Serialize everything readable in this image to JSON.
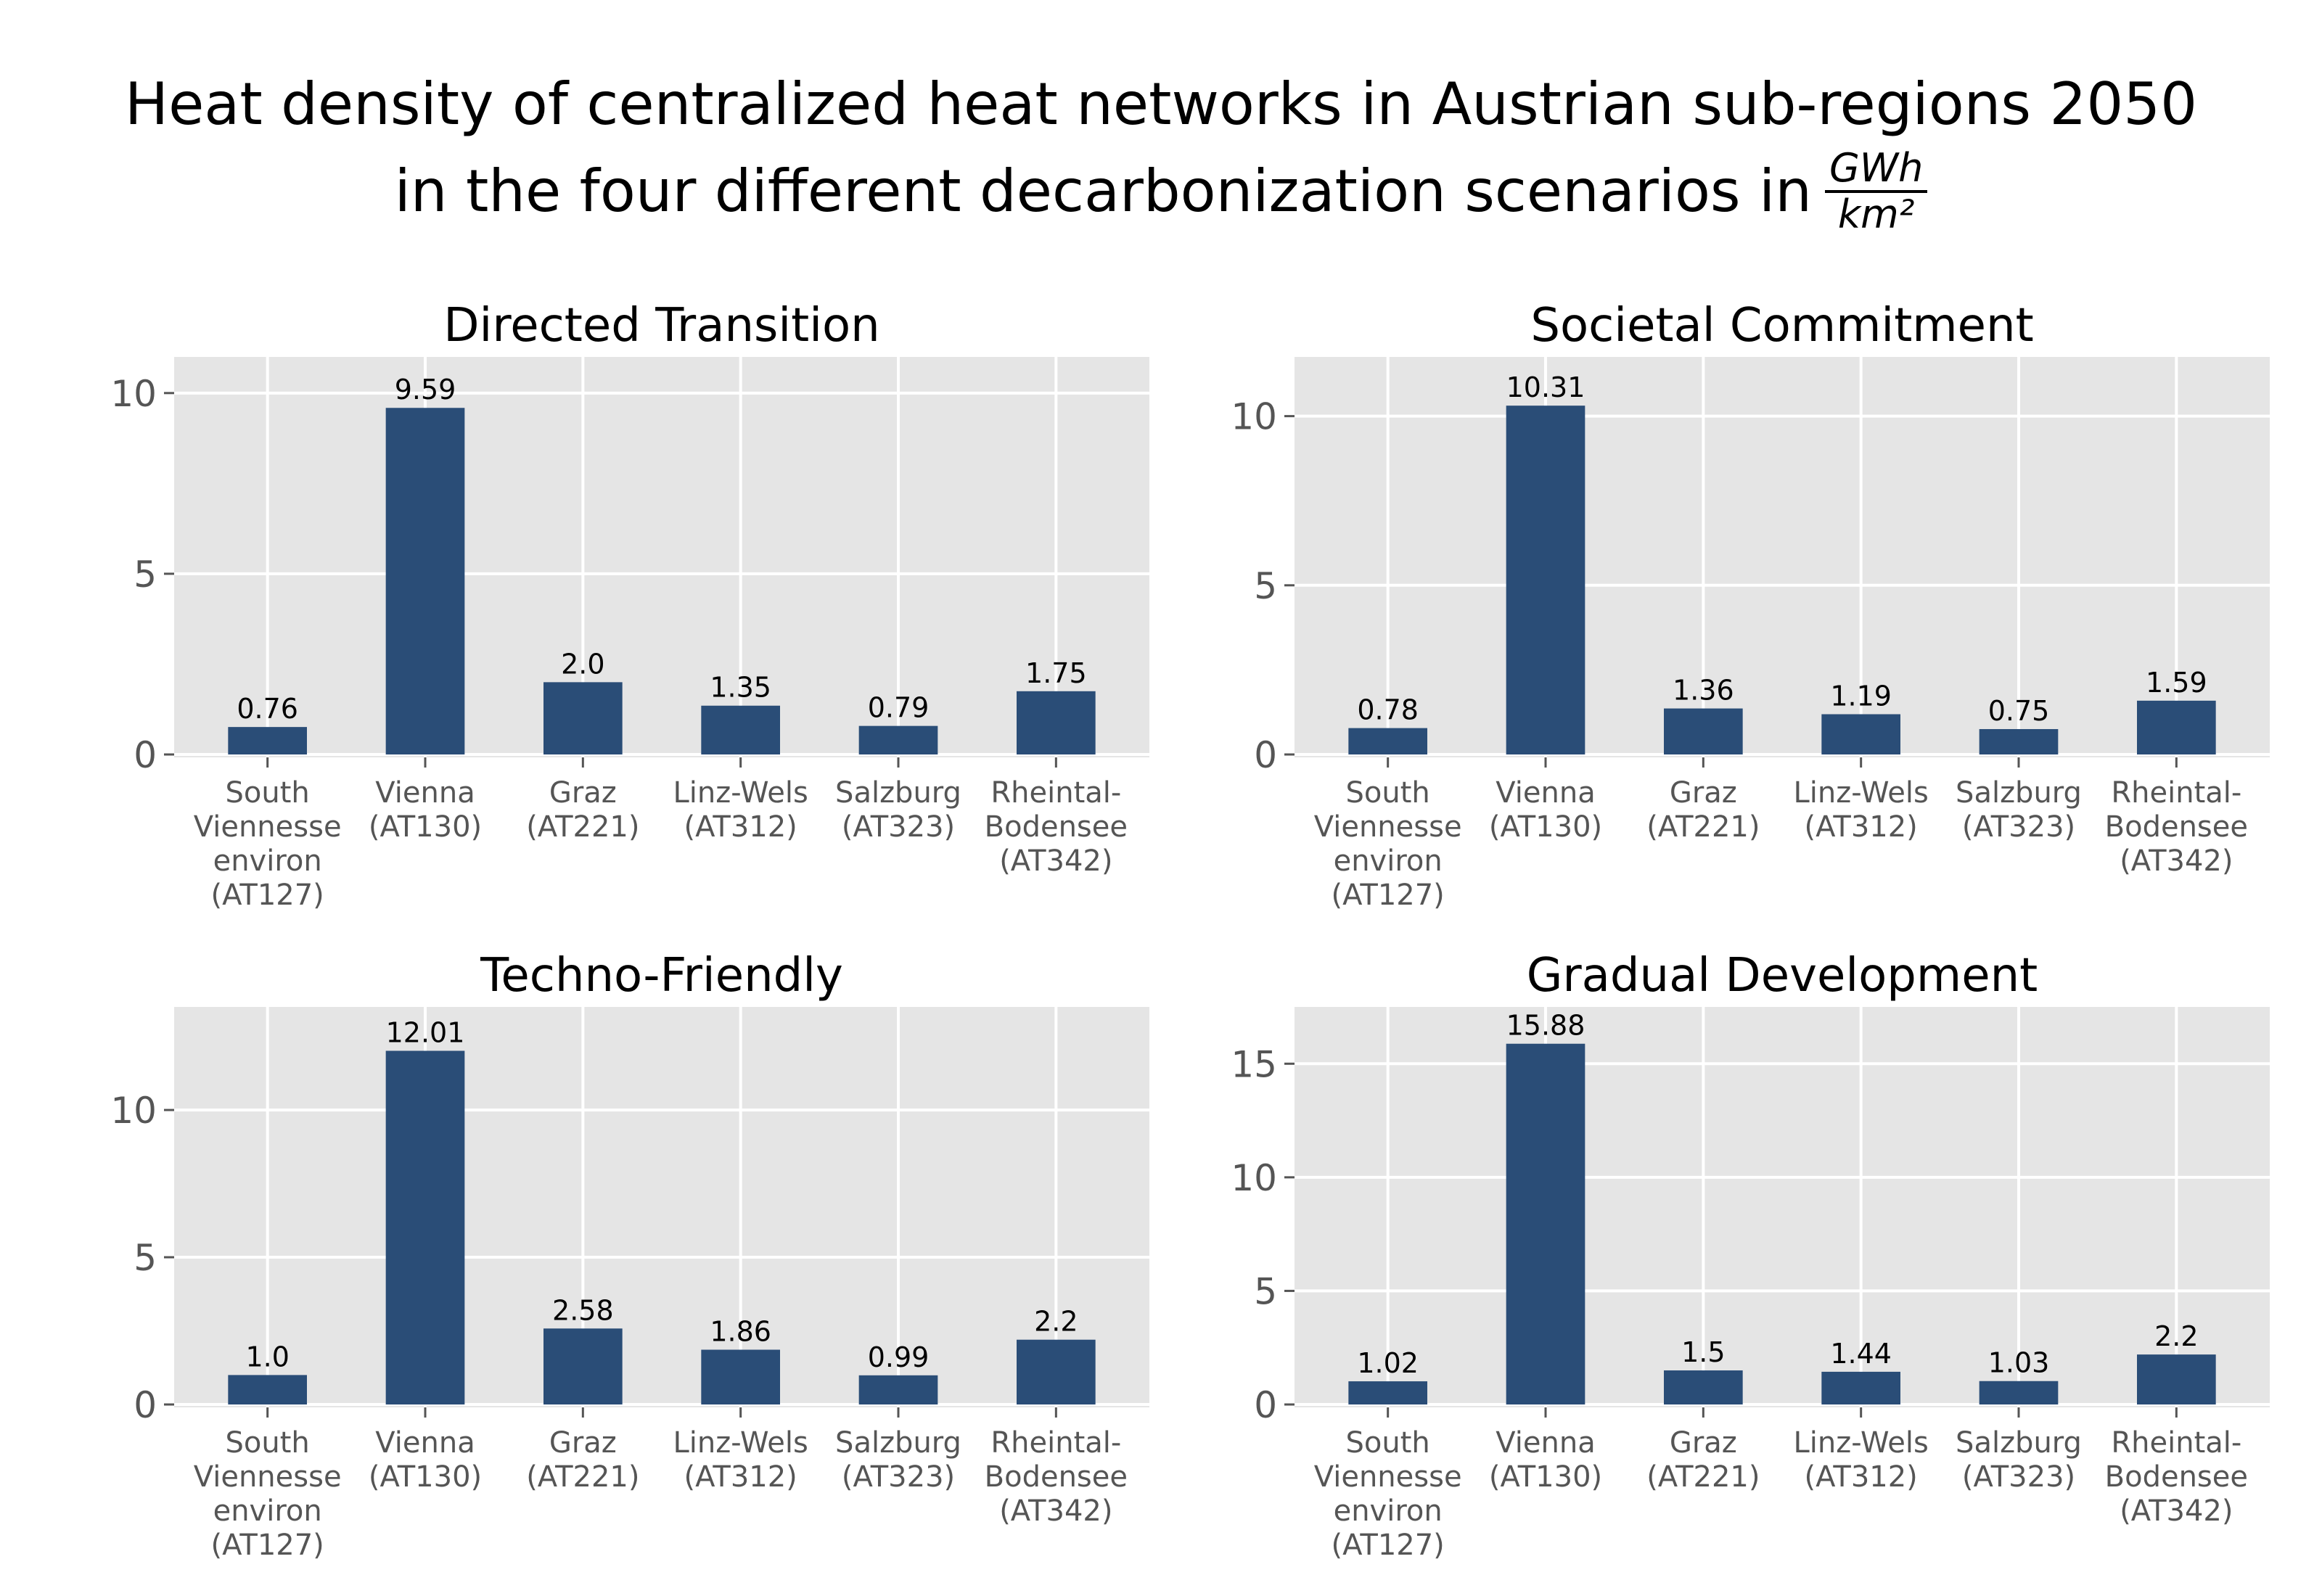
{
  "title": {
    "line1": "Heat density of centralized heat networks in Austrian sub-regions 2050",
    "line2": "in the four different decarbonization scenarios in",
    "unit_numerator": "GWh",
    "unit_denominator": "km²"
  },
  "colors": {
    "bar": "#2a4d77",
    "panel_bg": "#e5e5e5",
    "grid": "#ffffff",
    "tick_text": "#555555"
  },
  "categories": [
    [
      "South",
      "Viennesse",
      "environ",
      "(AT127)"
    ],
    [
      "Vienna",
      "(AT130)"
    ],
    [
      "Graz",
      "(AT221)"
    ],
    [
      "Linz-Wels",
      "(AT312)"
    ],
    [
      "Salzburg",
      "(AT323)"
    ],
    [
      "Rheintal-",
      "Bodensee",
      "(AT342)"
    ]
  ],
  "chart_data": [
    {
      "type": "bar",
      "title": "Directed Transition",
      "categories": [
        "South Viennesse environ (AT127)",
        "Vienna (AT130)",
        "Graz (AT221)",
        "Linz-Wels (AT312)",
        "Salzburg (AT323)",
        "Rheintal-Bodensee (AT342)"
      ],
      "values": [
        0.76,
        9.59,
        2.0,
        1.35,
        0.79,
        1.75
      ],
      "labels": [
        "0.76",
        "9.59",
        "2.0",
        "1.35",
        "0.79",
        "1.75"
      ],
      "yticks": [
        0,
        5,
        10
      ],
      "ylim": [
        0,
        11
      ],
      "grid": true
    },
    {
      "type": "bar",
      "title": "Societal Commitment",
      "categories": [
        "South Viennesse environ (AT127)",
        "Vienna (AT130)",
        "Graz (AT221)",
        "Linz-Wels (AT312)",
        "Salzburg (AT323)",
        "Rheintal-Bodensee (AT342)"
      ],
      "values": [
        0.78,
        10.31,
        1.36,
        1.19,
        0.75,
        1.59
      ],
      "labels": [
        "0.78",
        "10.31",
        "1.36",
        "1.19",
        "0.75",
        "1.59"
      ],
      "yticks": [
        0,
        5,
        10
      ],
      "ylim": [
        0,
        11.75
      ],
      "grid": true
    },
    {
      "type": "bar",
      "title": "Techno-Friendly",
      "categories": [
        "South Viennesse environ (AT127)",
        "Vienna (AT130)",
        "Graz (AT221)",
        "Linz-Wels (AT312)",
        "Salzburg (AT323)",
        "Rheintal-Bodensee (AT342)"
      ],
      "values": [
        1.0,
        12.01,
        2.58,
        1.86,
        0.99,
        2.2
      ],
      "labels": [
        "1.0",
        "12.01",
        "2.58",
        "1.86",
        "0.99",
        "2.2"
      ],
      "yticks": [
        0,
        5,
        10
      ],
      "ylim": [
        0,
        13.5
      ],
      "grid": true
    },
    {
      "type": "bar",
      "title": "Gradual Development",
      "categories": [
        "South Viennesse environ (AT127)",
        "Vienna (AT130)",
        "Graz (AT221)",
        "Linz-Wels (AT312)",
        "Salzburg (AT323)",
        "Rheintal-Bodensee (AT342)"
      ],
      "values": [
        1.02,
        15.88,
        1.5,
        1.44,
        1.03,
        2.2
      ],
      "labels": [
        "1.02",
        "15.88",
        "1.5",
        "1.44",
        "1.03",
        "2.2"
      ],
      "yticks": [
        0,
        5,
        10,
        15
      ],
      "ylim": [
        0,
        17.5
      ],
      "grid": true
    }
  ]
}
